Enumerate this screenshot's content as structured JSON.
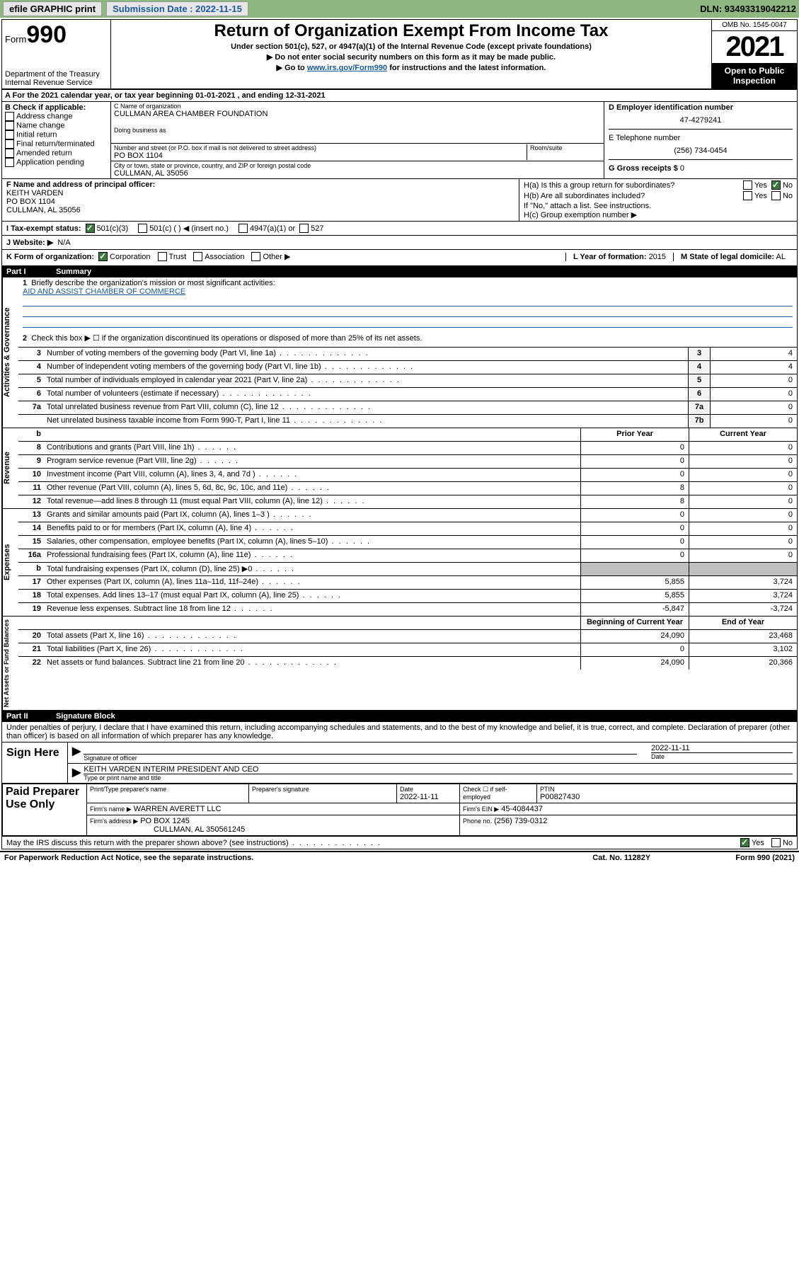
{
  "colors": {
    "topbar_bg": "#8eb87f",
    "link": "#185a9d",
    "shade": "#bfbfbf",
    "check_green": "#3a7a3a"
  },
  "topbar": {
    "efile": "efile GRAPHIC print",
    "submission_label": "Submission Date : 2022-11-15",
    "dln": "DLN: 93493319042212"
  },
  "header": {
    "form_word": "Form",
    "form_no": "990",
    "dept": "Department of the Treasury",
    "irs": "Internal Revenue Service",
    "title": "Return of Organization Exempt From Income Tax",
    "sub": "Under section 501(c), 527, or 4947(a)(1) of the Internal Revenue Code (except private foundations)",
    "note1": "▶ Do not enter social security numbers on this form as it may be made public.",
    "note2_pre": "▶ Go to ",
    "note2_link": "www.irs.gov/Form990",
    "note2_post": " for instructions and the latest information.",
    "omb": "OMB No. 1545-0047",
    "year": "2021",
    "open": "Open to Public Inspection"
  },
  "line_a": "A For the 2021 calendar year, or tax year beginning 01-01-2021   , and ending 12-31-2021",
  "box_b": {
    "label": "B Check if applicable:",
    "items": [
      "Address change",
      "Name change",
      "Initial return",
      "Final return/terminated",
      "Amended return",
      "Application pending"
    ]
  },
  "box_c": {
    "name_label": "C Name of organization",
    "name": "CULLMAN AREA CHAMBER FOUNDATION",
    "dba_label": "Doing business as",
    "street_label": "Number and street (or P.O. box if mail is not delivered to street address)",
    "room_label": "Room/suite",
    "street": "PO BOX 1104",
    "city_label": "City or town, state or province, country, and ZIP or foreign postal code",
    "city": "CULLMAN, AL  35056"
  },
  "box_d": {
    "ein_label": "D Employer identification number",
    "ein": "47-4279241",
    "tel_label": "E Telephone number",
    "tel": "(256) 734-0454",
    "gross_label": "G Gross receipts $",
    "gross": "0"
  },
  "box_f": {
    "label": "F Name and address of principal officer:",
    "name": "KEITH VARDEN",
    "street": "PO BOX 1104",
    "city": "CULLMAN, AL  35056"
  },
  "box_h": {
    "a_label": "H(a)  Is this a group return for subordinates?",
    "b_label": "H(b)  Are all subordinates included?",
    "attach": "If \"No,\" attach a list. See instructions.",
    "c_label": "H(c)  Group exemption number ▶"
  },
  "line_i": {
    "label": "I   Tax-exempt status:",
    "opts": [
      "501(c)(3)",
      "501(c) (   ) ◀ (insert no.)",
      "4947(a)(1) or",
      "527"
    ]
  },
  "line_j": {
    "label": "J   Website: ▶",
    "value": "N/A"
  },
  "line_k": {
    "label": "K Form of organization:",
    "opts": [
      "Corporation",
      "Trust",
      "Association",
      "Other ▶"
    ],
    "l_label": "L Year of formation:",
    "l_value": "2015",
    "m_label": "M State of legal domicile:",
    "m_value": "AL"
  },
  "part1": {
    "part": "Part I",
    "title": "Summary"
  },
  "summary": {
    "gov_label": "Activities & Governance",
    "rev_label": "Revenue",
    "exp_label": "Expenses",
    "net_label": "Net Assets or Fund Balances",
    "q1_label": "Briefly describe the organization's mission or most significant activities:",
    "q1_value": "AID AND ASSIST CHAMBER OF COMMERCE",
    "q2": "Check this box ▶ ☐  if the organization discontinued its operations or disposed of more than 25% of its net assets.",
    "gov_rows": [
      {
        "n": "3",
        "d": "Number of voting members of the governing body (Part VI, line 1a)",
        "box": "3",
        "v": "4"
      },
      {
        "n": "4",
        "d": "Number of independent voting members of the governing body (Part VI, line 1b)",
        "box": "4",
        "v": "4"
      },
      {
        "n": "5",
        "d": "Total number of individuals employed in calendar year 2021 (Part V, line 2a)",
        "box": "5",
        "v": "0"
      },
      {
        "n": "6",
        "d": "Total number of volunteers (estimate if necessary)",
        "box": "6",
        "v": "0"
      },
      {
        "n": "7a",
        "d": "Total unrelated business revenue from Part VIII, column (C), line 12",
        "box": "7a",
        "v": "0"
      },
      {
        "n": "",
        "d": "Net unrelated business taxable income from Form 990-T, Part I, line 11",
        "box": "7b",
        "v": "0"
      }
    ],
    "col_prior_head": "Prior Year",
    "col_curr_head": "Current Year",
    "rev_rows": [
      {
        "n": "8",
        "d": "Contributions and grants (Part VIII, line 1h)",
        "p": "0",
        "c": "0"
      },
      {
        "n": "9",
        "d": "Program service revenue (Part VIII, line 2g)",
        "p": "0",
        "c": "0"
      },
      {
        "n": "10",
        "d": "Investment income (Part VIII, column (A), lines 3, 4, and 7d )",
        "p": "0",
        "c": "0"
      },
      {
        "n": "11",
        "d": "Other revenue (Part VIII, column (A), lines 5, 6d, 8c, 9c, 10c, and 11e)",
        "p": "8",
        "c": "0"
      },
      {
        "n": "12",
        "d": "Total revenue—add lines 8 through 11 (must equal Part VIII, column (A), line 12)",
        "p": "8",
        "c": "0"
      }
    ],
    "exp_rows": [
      {
        "n": "13",
        "d": "Grants and similar amounts paid (Part IX, column (A), lines 1–3 )",
        "p": "0",
        "c": "0"
      },
      {
        "n": "14",
        "d": "Benefits paid to or for members (Part IX, column (A), line 4)",
        "p": "0",
        "c": "0"
      },
      {
        "n": "15",
        "d": "Salaries, other compensation, employee benefits (Part IX, column (A), lines 5–10)",
        "p": "0",
        "c": "0"
      },
      {
        "n": "16a",
        "d": "Professional fundraising fees (Part IX, column (A), line 11e)",
        "p": "0",
        "c": "0"
      },
      {
        "n": "b",
        "d": "Total fundraising expenses (Part IX, column (D), line 25) ▶0",
        "p": "",
        "c": "",
        "shade": true
      },
      {
        "n": "17",
        "d": "Other expenses (Part IX, column (A), lines 11a–11d, 11f–24e)",
        "p": "5,855",
        "c": "3,724"
      },
      {
        "n": "18",
        "d": "Total expenses. Add lines 13–17 (must equal Part IX, column (A), line 25)",
        "p": "5,855",
        "c": "3,724"
      },
      {
        "n": "19",
        "d": "Revenue less expenses. Subtract line 18 from line 12",
        "p": "-5,847",
        "c": "-3,724"
      }
    ],
    "net_head_p": "Beginning of Current Year",
    "net_head_c": "End of Year",
    "net_rows": [
      {
        "n": "20",
        "d": "Total assets (Part X, line 16)",
        "p": "24,090",
        "c": "23,468"
      },
      {
        "n": "21",
        "d": "Total liabilities (Part X, line 26)",
        "p": "0",
        "c": "3,102"
      },
      {
        "n": "22",
        "d": "Net assets or fund balances. Subtract line 21 from line 20",
        "p": "24,090",
        "c": "20,366"
      }
    ]
  },
  "part2": {
    "part": "Part II",
    "title": "Signature Block"
  },
  "sig": {
    "perjury": "Under penalties of perjury, I declare that I have examined this return, including accompanying schedules and statements, and to the best of my knowledge and belief, it is true, correct, and complete. Declaration of preparer (other than officer) is based on all information of which preparer has any knowledge.",
    "sign_here": "Sign Here",
    "sig_officer": "Signature of officer",
    "date_label": "Date",
    "date": "2022-11-11",
    "name_title": "KEITH VARDEN INTERIM PRESIDENT AND CEO",
    "type_name": "Type or print name and title"
  },
  "preparer": {
    "label": "Paid Preparer Use Only",
    "col_name": "Print/Type preparer's name",
    "col_sig": "Preparer's signature",
    "col_date": "Date",
    "date": "2022-11-11",
    "check_self": "Check ☐ if self-employed",
    "ptin_label": "PTIN",
    "ptin": "P00827430",
    "firm_name_label": "Firm's name    ▶",
    "firm_name": "WARREN AVERETT LLC",
    "firm_ein_label": "Firm's EIN ▶",
    "firm_ein": "45-4084437",
    "firm_addr_label": "Firm's address ▶",
    "firm_addr1": "PO BOX 1245",
    "firm_addr2": "CULLMAN, AL  350561245",
    "phone_label": "Phone no.",
    "phone": "(256) 739-0312"
  },
  "footer": {
    "discuss": "May the IRS discuss this return with the preparer shown above? (see instructions)",
    "paperwork": "For Paperwork Reduction Act Notice, see the separate instructions.",
    "cat": "Cat. No. 11282Y",
    "formrev": "Form 990 (2021)"
  }
}
